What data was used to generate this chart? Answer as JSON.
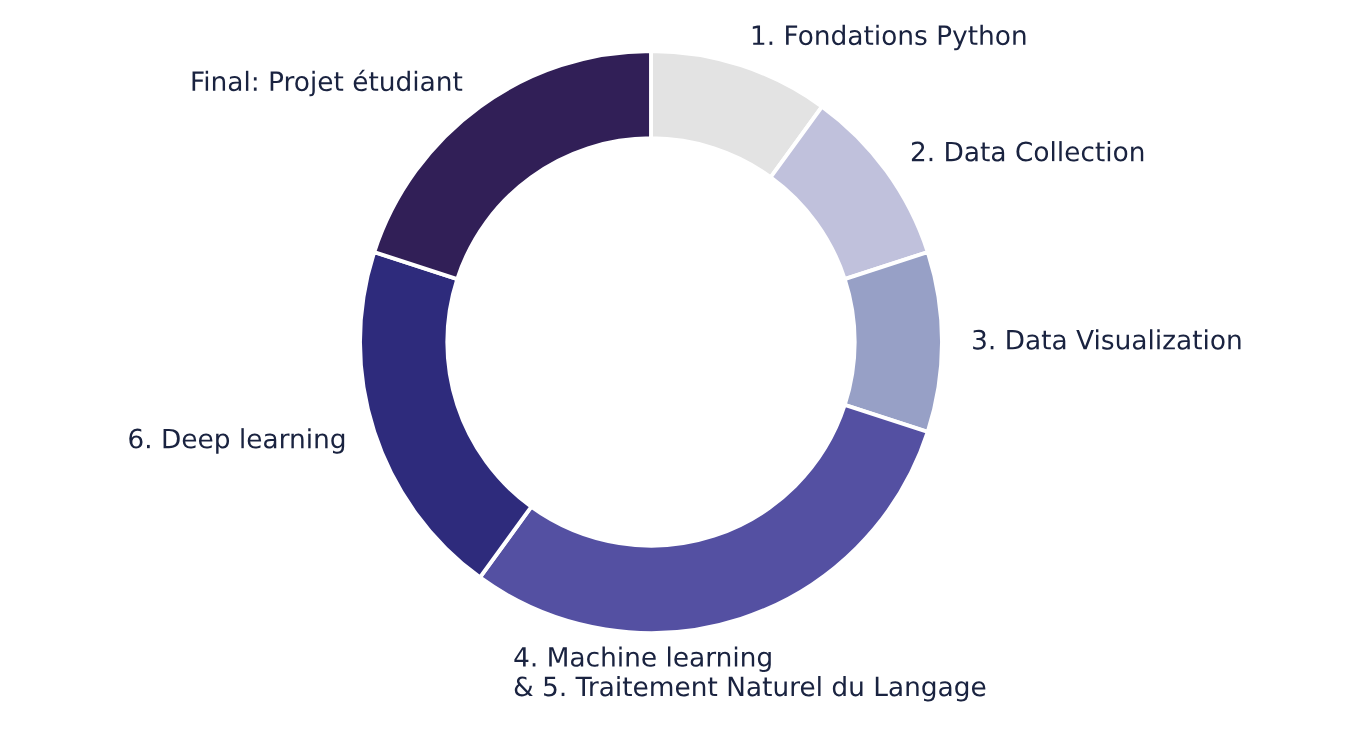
{
  "chart_data": {
    "type": "donut",
    "categories": [
      "1. Fondations Python",
      "2. Data Collection",
      "3. Data Visualization",
      "4. Machine learning\n& 5. Traitement Naturel du Langage",
      "6. Deep learning",
      "Final: Projet étudiant"
    ],
    "values": [
      10,
      10,
      10,
      30,
      20,
      20
    ],
    "colors": [
      "#e3e3e3",
      "#c0c1dc",
      "#97a0c6",
      "#5450a2",
      "#2e2b7c",
      "#311f57"
    ],
    "legend": false
  }
}
